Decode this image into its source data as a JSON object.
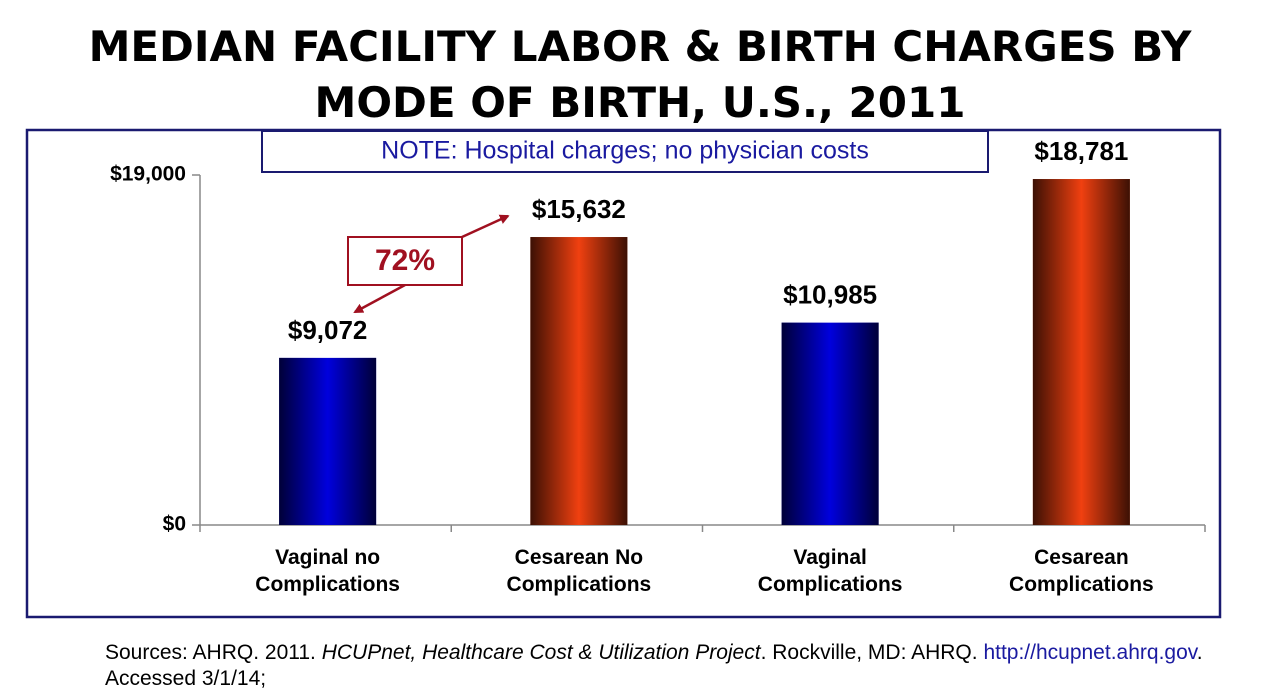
{
  "chart_data": {
    "type": "bar",
    "title": [
      "MEDIAN FACILITY LABOR & BIRTH CHARGES BY",
      "MODE OF BIRTH, U.S., 2011"
    ],
    "note": "NOTE: Hospital charges; no physician costs",
    "annotation": "72%",
    "categories": [
      "Vaginal no Complications",
      "Cesarean No Complications",
      "Vaginal Complications",
      "Cesarean Complications"
    ],
    "values": [
      9072,
      15632,
      10985,
      18781
    ],
    "value_labels": [
      "$9,072",
      "$15,632",
      "$10,985",
      "$18,781"
    ],
    "colors": [
      "#0000dd",
      "#f04010",
      "#0000dd",
      "#f04010"
    ],
    "ylim": [
      0,
      19000
    ],
    "yticks": [
      {
        "value": 0,
        "label": "$0"
      },
      {
        "value": 19000,
        "label": "$19,000"
      }
    ],
    "sources": {
      "prefix": "Sources: AHRQ. 2011. ",
      "work": "HCUPnet, Healthcare Cost & Utilization Project",
      "middle": ". Rockville, MD: AHRQ. ",
      "link": "http://hcupnet.ahrq.gov",
      "suffix": ".  Accessed 3/1/14;"
    }
  }
}
